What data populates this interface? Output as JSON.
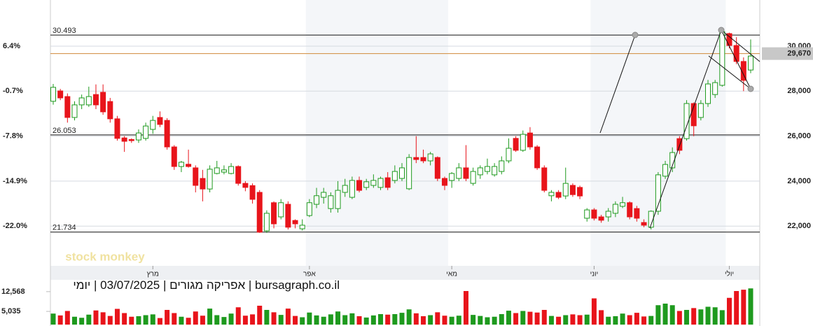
{
  "chart_data": {
    "type": "candlestick",
    "title": "bursagraph.co.il | אפריקה מגורים | 03/07/2025 | יומי",
    "watermark": "stock monkey",
    "ylim": [
      20233,
      32053
    ],
    "yticks": [
      {
        "value": 30000,
        "label": "30,000"
      },
      {
        "value": 28000,
        "label": "28,000"
      },
      {
        "value": 26000,
        "label": "26,000"
      },
      {
        "value": 24000,
        "label": "24,000"
      },
      {
        "value": 22000,
        "label": "22,000"
      }
    ],
    "pct_ticks": [
      {
        "value": 30000,
        "label": "6.4%"
      },
      {
        "value": 28000,
        "label": "-0.7%"
      },
      {
        "value": 26000,
        "label": "-7.8%"
      },
      {
        "value": 24000,
        "label": "-14.9%"
      },
      {
        "value": 22000,
        "label": "-22.0%"
      }
    ],
    "levels": [
      {
        "value": 30493,
        "label": "30.493"
      },
      {
        "value": 26053,
        "label": "26.053"
      },
      {
        "value": 21734,
        "label": "21.734"
      }
    ],
    "last_price": {
      "value": 29670,
      "label": "29,670"
    },
    "months": [
      {
        "label": "מרץ",
        "index": 14
      },
      {
        "label": "אפר",
        "index": 36
      },
      {
        "label": "מאי",
        "index": 56
      },
      {
        "label": "יוני",
        "index": 76
      },
      {
        "label": "יולי",
        "index": 95
      }
    ],
    "up_color": "#1e9a1e",
    "down_color": "#e8141b",
    "level_color": "#111111",
    "last_color": "#d08a3a",
    "candles": [
      [
        27550,
        28320,
        27400,
        28170
      ],
      [
        28010,
        28100,
        27600,
        27700
      ],
      [
        27760,
        27900,
        26600,
        26830
      ],
      [
        26830,
        27550,
        26700,
        27390
      ],
      [
        27390,
        27850,
        27200,
        27700
      ],
      [
        27390,
        28200,
        27300,
        27760
      ],
      [
        27850,
        28300,
        27200,
        27390
      ],
      [
        27950,
        28300,
        26950,
        27080
      ],
      [
        27540,
        27700,
        26600,
        26770
      ],
      [
        26770,
        26900,
        25800,
        25900
      ],
      [
        25920,
        26000,
        25300,
        25770
      ],
      [
        25850,
        25900,
        25700,
        25800
      ],
      [
        25830,
        26300,
        25700,
        26140
      ],
      [
        25900,
        26600,
        25800,
        26450
      ],
      [
        26300,
        26900,
        26100,
        26700
      ],
      [
        26830,
        27100,
        26400,
        26520
      ],
      [
        26700,
        26800,
        25400,
        25520
      ],
      [
        25520,
        25600,
        24500,
        24650
      ],
      [
        24650,
        24900,
        24400,
        24840
      ],
      [
        24750,
        25400,
        24600,
        24650
      ],
      [
        24590,
        24700,
        23500,
        23810
      ],
      [
        24120,
        24500,
        23100,
        23650
      ],
      [
        23650,
        24700,
        23500,
        24530
      ],
      [
        24340,
        24900,
        24300,
        24590
      ],
      [
        24400,
        24700,
        24300,
        24500
      ],
      [
        24340,
        24800,
        24300,
        24650
      ],
      [
        24650,
        24700,
        23800,
        23900
      ],
      [
        23900,
        24000,
        23550,
        23720
      ],
      [
        23800,
        23900,
        23000,
        23190
      ],
      [
        23500,
        23600,
        21700,
        21730
      ],
      [
        21790,
        22700,
        21700,
        22570
      ],
      [
        23040,
        23100,
        21900,
        22100
      ],
      [
        22410,
        23200,
        22300,
        23040
      ],
      [
        22970,
        23100,
        21850,
        21950
      ],
      [
        22250,
        22300,
        21900,
        22100
      ],
      [
        21880,
        22300,
        21800,
        22040
      ],
      [
        22470,
        23200,
        22400,
        23040
      ],
      [
        22970,
        23700,
        22800,
        23350
      ],
      [
        23280,
        23700,
        23000,
        23500
      ],
      [
        22780,
        23500,
        22600,
        23350
      ],
      [
        22780,
        24000,
        22600,
        23590
      ],
      [
        23500,
        24100,
        23300,
        23810
      ],
      [
        23280,
        24200,
        23200,
        24030
      ],
      [
        24030,
        24200,
        23500,
        23590
      ],
      [
        23720,
        24100,
        23600,
        23970
      ],
      [
        23810,
        24300,
        23700,
        24030
      ],
      [
        23720,
        24200,
        23600,
        24120
      ],
      [
        24150,
        24400,
        23600,
        23720
      ],
      [
        24030,
        24700,
        23900,
        24430
      ],
      [
        24120,
        24800,
        24000,
        24590
      ],
      [
        23660,
        25200,
        23600,
        25050
      ],
      [
        25050,
        26000,
        24800,
        24960
      ],
      [
        25050,
        25400,
        24800,
        24900
      ],
      [
        24900,
        25300,
        24700,
        25210
      ],
      [
        25050,
        25100,
        24000,
        24120
      ],
      [
        24120,
        24200,
        23600,
        23810
      ],
      [
        24030,
        24400,
        23700,
        24340
      ],
      [
        24120,
        24800,
        24000,
        24590
      ],
      [
        24590,
        25600,
        24000,
        24120
      ],
      [
        23900,
        24600,
        23800,
        24430
      ],
      [
        24280,
        24700,
        24100,
        24590
      ],
      [
        24430,
        25000,
        24300,
        24650
      ],
      [
        24280,
        24800,
        24200,
        24650
      ],
      [
        24430,
        25100,
        24300,
        24900
      ],
      [
        24900,
        25900,
        24800,
        25460
      ],
      [
        25900,
        26000,
        25300,
        25370
      ],
      [
        25370,
        26250,
        25300,
        26080
      ],
      [
        26140,
        26400,
        25400,
        25520
      ],
      [
        25520,
        25600,
        24500,
        24590
      ],
      [
        24590,
        24700,
        23500,
        23590
      ],
      [
        23350,
        23600,
        23100,
        23500
      ],
      [
        23500,
        23600,
        23200,
        23280
      ],
      [
        23340,
        24600,
        23200,
        23900
      ],
      [
        23810,
        23900,
        23300,
        23400
      ],
      [
        23720,
        23800,
        23200,
        23340
      ],
      [
        22350,
        22800,
        22200,
        22720
      ],
      [
        22720,
        22800,
        22250,
        22350
      ],
      [
        22410,
        22500,
        22150,
        22260
      ],
      [
        22410,
        22800,
        22200,
        22660
      ],
      [
        22570,
        23100,
        22400,
        22970
      ],
      [
        22880,
        23300,
        22800,
        23040
      ],
      [
        23040,
        23100,
        22300,
        22410
      ],
      [
        22780,
        22900,
        22200,
        22350
      ],
      [
        22160,
        22300,
        21950,
        22040
      ],
      [
        21950,
        22700,
        21850,
        22660
      ],
      [
        22660,
        24400,
        22500,
        24280
      ],
      [
        24220,
        24900,
        24100,
        24740
      ],
      [
        24590,
        25500,
        24400,
        25270
      ],
      [
        25890,
        26000,
        25200,
        25370
      ],
      [
        25890,
        27600,
        25800,
        27450
      ],
      [
        27450,
        27500,
        26000,
        26460
      ],
      [
        26830,
        27600,
        26700,
        27450
      ],
      [
        27450,
        28500,
        27300,
        28320
      ],
      [
        27850,
        28500,
        27700,
        28380
      ],
      [
        28260,
        30800,
        28200,
        30650
      ],
      [
        30560,
        30600,
        29900,
        30030
      ],
      [
        30030,
        30400,
        29200,
        29320
      ],
      [
        29320,
        29500,
        28000,
        28480
      ],
      [
        28940,
        30300,
        28800,
        29560
      ]
    ],
    "volume": {
      "ylim": [
        0,
        16000
      ],
      "yticks": [
        {
          "value": 12568,
          "label": "12,568"
        },
        {
          "value": 5035,
          "label": "5,035"
        }
      ],
      "values": [
        4200,
        3500,
        5200,
        3000,
        2600,
        3800,
        5400,
        4700,
        3300,
        6000,
        4400,
        3000,
        3200,
        3600,
        3900,
        2500,
        5600,
        4400,
        3000,
        2600,
        5000,
        3400,
        6100,
        3600,
        2900,
        4200,
        6600,
        3400,
        3900,
        7200,
        5600,
        4700,
        3700,
        6100,
        3300,
        2800,
        4600,
        3500,
        3000,
        3900,
        5000,
        3600,
        4300,
        3200,
        2700,
        3500,
        4000,
        3800,
        4000,
        4500,
        5800,
        4300,
        3200,
        3600,
        4700,
        3400,
        3000,
        3400,
        12800,
        3700,
        3300,
        2800,
        3000,
        4000,
        5300,
        4400,
        5200,
        4900,
        4600,
        5600,
        3300,
        3000,
        3600,
        3900,
        3600,
        3800,
        10000,
        5500,
        3000,
        3200,
        4200,
        3600,
        4500,
        3100,
        3300,
        7400,
        8000,
        7400,
        5200,
        5600,
        6300,
        5800,
        6800,
        6600,
        5500,
        10200,
        12800,
        13300,
        13800
      ]
    }
  }
}
